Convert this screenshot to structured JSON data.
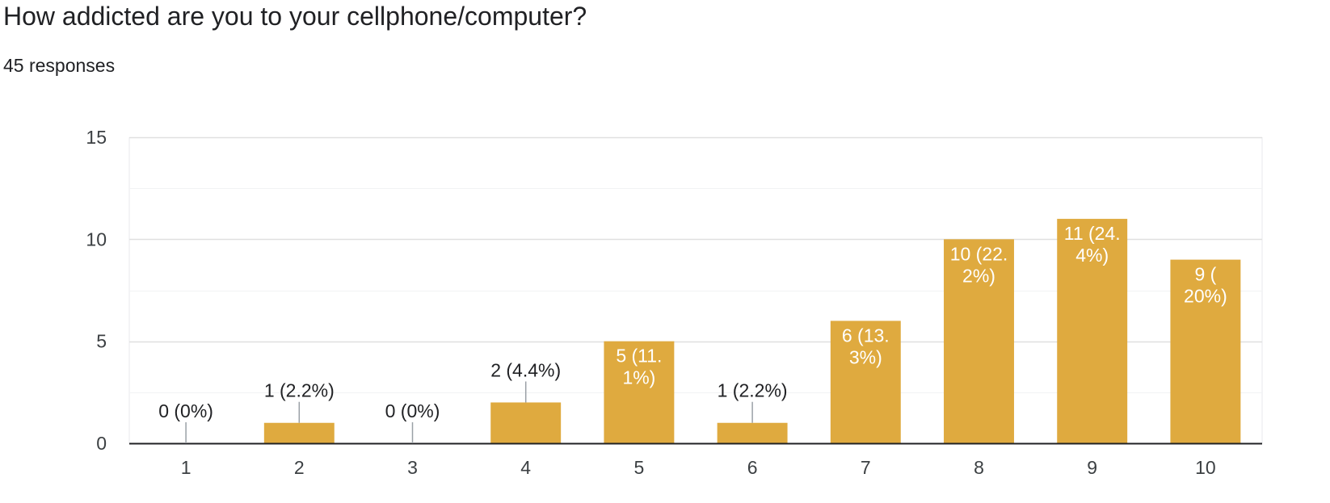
{
  "header": {
    "title": "How addicted are you to your cellphone/computer?",
    "subtitle": "45 responses"
  },
  "chart_data": {
    "type": "bar",
    "categories": [
      "1",
      "2",
      "3",
      "4",
      "5",
      "6",
      "7",
      "8",
      "9",
      "10"
    ],
    "values": [
      0,
      1,
      0,
      2,
      5,
      1,
      6,
      10,
      11,
      9
    ],
    "data_labels": [
      [
        "0 (0%)"
      ],
      [
        "1 (2.2%)"
      ],
      [
        "0 (0%)"
      ],
      [
        "2 (4.4%)"
      ],
      [
        "5 (11.",
        "1%)"
      ],
      [
        "1 (2.2%)"
      ],
      [
        "6 (13.",
        "3%)"
      ],
      [
        "10 (22.",
        "2%)"
      ],
      [
        "11 (24.",
        "4%)"
      ],
      [
        "9 (",
        "20%)"
      ]
    ],
    "ylim": [
      0,
      15
    ],
    "yticks": [
      0,
      5,
      10,
      15
    ],
    "grid": true,
    "bar_color": "#dfaa3f",
    "gridline_color": "#e8eaed",
    "axis_color": "#202124",
    "title": "How addicted are you to your cellphone/computer?",
    "subtitle": "45 responses",
    "xlabel": "",
    "ylabel": ""
  }
}
